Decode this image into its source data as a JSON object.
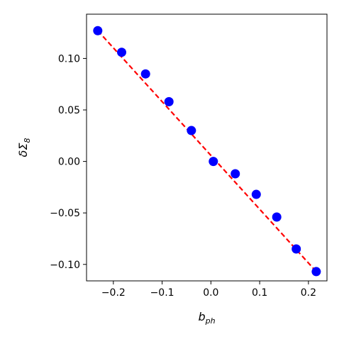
{
  "chart_data": {
    "type": "scatter",
    "xlabel_base": "b",
    "xlabel_sub": "ph",
    "ylabel_base": "δΣ",
    "ylabel_sub": "8",
    "xlim": [
      -0.255,
      0.238
    ],
    "ylim": [
      -0.116,
      0.143
    ],
    "xticks": [
      {
        "value": -0.2,
        "label": "−0.2"
      },
      {
        "value": -0.1,
        "label": "−0.1"
      },
      {
        "value": 0.0,
        "label": "0.0"
      },
      {
        "value": 0.1,
        "label": "0.1"
      },
      {
        "value": 0.2,
        "label": "0.2"
      }
    ],
    "yticks": [
      {
        "value": -0.1,
        "label": "−0.10"
      },
      {
        "value": -0.05,
        "label": "−0.05"
      },
      {
        "value": 0.0,
        "label": "0.00"
      },
      {
        "value": 0.05,
        "label": "0.05"
      },
      {
        "value": 0.1,
        "label": "0.10"
      }
    ],
    "series": [
      {
        "kind": "points",
        "color": "#0000ff",
        "x": [
          -0.232,
          -0.183,
          -0.134,
          -0.086,
          -0.04,
          0.005,
          0.05,
          0.093,
          0.135,
          0.175,
          0.216
        ],
        "y": [
          0.127,
          0.106,
          0.085,
          0.058,
          0.03,
          0.0,
          -0.012,
          -0.032,
          -0.054,
          -0.085,
          -0.107
        ]
      },
      {
        "kind": "fit-line",
        "color": "#ff0000",
        "style": "dashed",
        "x": [
          -0.232,
          0.216
        ],
        "y": [
          0.127,
          -0.107
        ]
      }
    ]
  }
}
